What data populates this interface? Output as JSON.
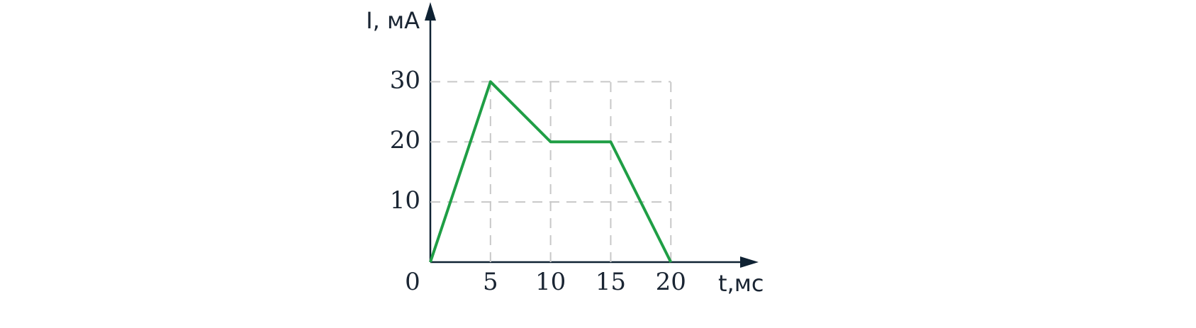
{
  "chart_data": {
    "type": "line",
    "x_label": "t,мс",
    "y_label": "I, мА",
    "x": [
      0,
      5,
      10,
      15,
      20
    ],
    "series": [
      {
        "name": "I",
        "color": "#1f9e45",
        "values": [
          0,
          30,
          20,
          20,
          0
        ]
      }
    ],
    "xlim": [
      0,
      27
    ],
    "ylim": [
      0,
      43
    ],
    "xticks": [
      0,
      5,
      10,
      15,
      20
    ],
    "yticks": [
      10,
      20,
      30
    ],
    "grid": true
  }
}
